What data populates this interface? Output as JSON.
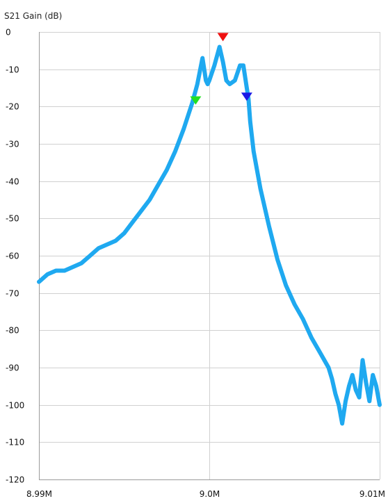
{
  "chart_data": {
    "type": "line",
    "ylabel": "S21 Gain (dB)",
    "xlabel": "",
    "xlim": [
      8.99,
      9.01
    ],
    "ylim": [
      -120,
      0
    ],
    "x_ticks": [
      8.99,
      9.0,
      9.01
    ],
    "x_tick_labels": [
      "8.99M",
      "9.0M",
      "9.01M"
    ],
    "y_ticks": [
      0,
      -10,
      -20,
      -30,
      -40,
      -50,
      -60,
      -70,
      -80,
      -90,
      -100,
      -110,
      -120
    ],
    "y_tick_labels": [
      "0",
      "-10",
      "-20",
      "-30",
      "-40",
      "-50",
      "-60",
      "-70",
      "-80",
      "-90",
      "-100",
      "-110",
      "-120"
    ],
    "grid": true,
    "series": [
      {
        "color": "#1fa9f0",
        "x": [
          8.99,
          8.9905,
          8.991,
          8.9915,
          8.992,
          8.9925,
          8.993,
          8.9935,
          8.994,
          8.9945,
          8.995,
          8.9955,
          8.996,
          8.9965,
          8.997,
          8.9975,
          8.998,
          8.9985,
          8.999,
          8.9993,
          8.9996,
          8.9997,
          8.9998,
          8.9999,
          9.0,
          9.0003,
          9.0006,
          9.0008,
          9.001,
          9.0012,
          9.0015,
          9.0018,
          9.002,
          9.0022,
          9.0023,
          9.0024,
          9.0026,
          9.003,
          9.0035,
          9.004,
          9.0045,
          9.005,
          9.0055,
          9.006,
          9.0065,
          9.007,
          9.0072,
          9.0074,
          9.0076,
          9.0078,
          9.008,
          9.0082,
          9.0084,
          9.0086,
          9.0088,
          9.009,
          9.0092,
          9.0094,
          9.0096,
          9.0098,
          9.01
        ],
        "y": [
          -67,
          -65,
          -64,
          -64,
          -63,
          -62,
          -60,
          -58,
          -57,
          -56,
          -54,
          -51,
          -48,
          -45,
          -41,
          -37,
          -32,
          -26,
          -19,
          -14,
          -7,
          -10,
          -13,
          -14,
          -13,
          -9,
          -4,
          -8,
          -13,
          -14,
          -13,
          -9,
          -9,
          -15,
          -18,
          -24,
          -32,
          -42,
          -52,
          -61,
          -68,
          -73,
          -77,
          -82,
          -86,
          -90,
          -93,
          -97,
          -100,
          -105,
          -99,
          -95,
          -92,
          -96,
          -98,
          -88,
          -94,
          -99,
          -92,
          -95,
          -100
        ]
      }
    ],
    "markers": [
      {
        "x": 8.9992,
        "y": -19.5,
        "color": "#22e022"
      },
      {
        "x": 9.0008,
        "y": -2.5,
        "color": "#ee1111"
      },
      {
        "x": 9.0022,
        "y": -18.5,
        "color": "#1a1ae6"
      }
    ]
  }
}
